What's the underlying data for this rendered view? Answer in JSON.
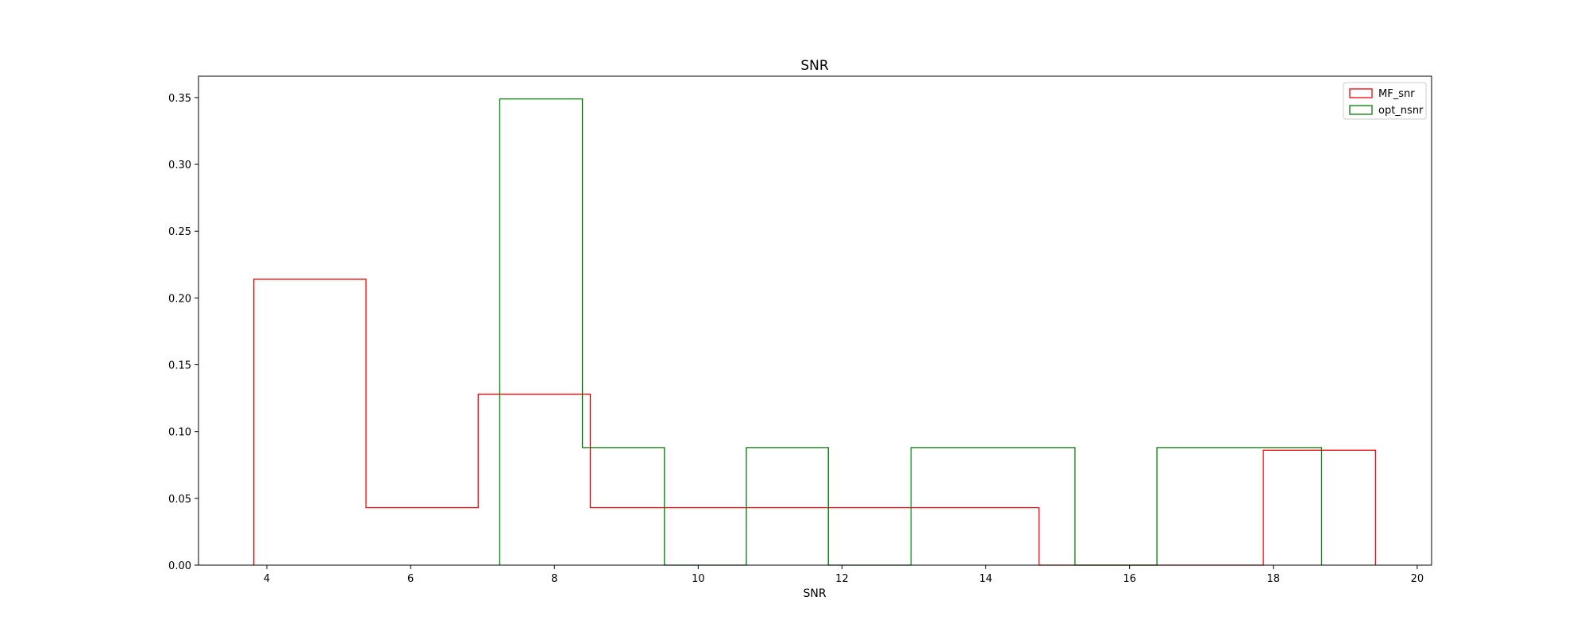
{
  "chart_data": {
    "type": "histogram-step",
    "title": "SNR",
    "xlabel": "SNR",
    "ylabel": "",
    "xlim": [
      3.05,
      20.2
    ],
    "ylim": [
      0,
      0.366
    ],
    "xticks": [
      "4",
      "6",
      "8",
      "10",
      "12",
      "14",
      "16",
      "18",
      "20"
    ],
    "yticks": [
      "0.00",
      "0.05",
      "0.10",
      "0.15",
      "0.20",
      "0.25",
      "0.30",
      "0.35"
    ],
    "legend_position": "top-right",
    "series": [
      {
        "name": "MF_snr",
        "color": "#ff0000",
        "bin_edges": [
          3.82,
          5.38,
          6.94,
          8.5,
          10.06,
          11.62,
          13.18,
          14.74,
          16.3,
          17.86,
          19.42
        ],
        "values": [
          0.214,
          0.043,
          0.128,
          0.043,
          0.043,
          0.043,
          0.043,
          0.0,
          0.0,
          0.086
        ]
      },
      {
        "name": "opt_nsnr",
        "color": "#008000",
        "bin_edges": [
          7.24,
          8.39,
          9.53,
          10.67,
          11.81,
          12.96,
          14.1,
          15.24,
          16.38,
          17.53,
          18.67
        ],
        "values": [
          0.349,
          0.088,
          0.0,
          0.088,
          0.0,
          0.088,
          0.088,
          0.0,
          0.088,
          0.088
        ]
      }
    ]
  }
}
